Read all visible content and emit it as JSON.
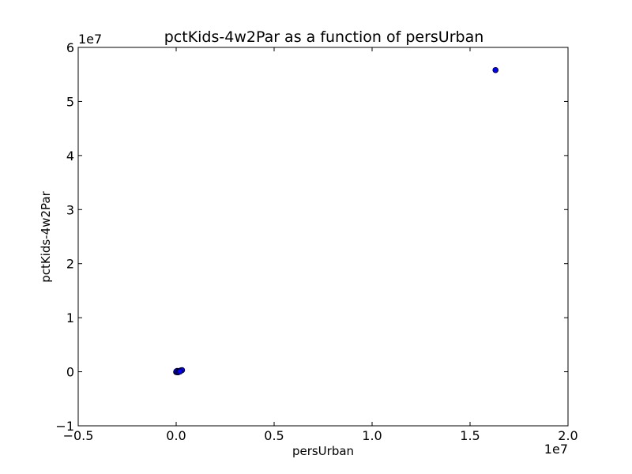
{
  "chart_data": {
    "type": "scatter",
    "title": "pctKids-4w2Par as a function of persUrban",
    "xlabel": "persUrban",
    "ylabel": "pctKids-4w2Par",
    "xlim": [
      -5000000,
      20000000
    ],
    "ylim": [
      -10000000,
      60000000
    ],
    "x_ticks": [
      -5000000,
      0,
      5000000,
      10000000,
      15000000,
      20000000
    ],
    "x_tick_labels": [
      "−0.5",
      "0.0",
      "0.5",
      "1.0",
      "1.5",
      "2.0"
    ],
    "x_offset_label": "1e7",
    "y_ticks": [
      -10000000,
      0,
      10000000,
      20000000,
      30000000,
      40000000,
      50000000,
      60000000
    ],
    "y_tick_labels": [
      "−1",
      "0",
      "1",
      "2",
      "3",
      "4",
      "5",
      "6"
    ],
    "y_offset_label": "1e7",
    "grid": false,
    "marker_color": "#0000ff",
    "marker_edge_color": "#000000",
    "points": [
      {
        "x": 16300000,
        "y": 55800000
      },
      {
        "x": 0,
        "y": -50000
      },
      {
        "x": 20000,
        "y": 0
      },
      {
        "x": 40000,
        "y": -80000
      },
      {
        "x": 60000,
        "y": 50000
      },
      {
        "x": 80000,
        "y": 20000
      },
      {
        "x": 100000,
        "y": -30000
      },
      {
        "x": 120000,
        "y": 80000
      },
      {
        "x": 150000,
        "y": 100000
      },
      {
        "x": 180000,
        "y": 150000
      },
      {
        "x": 220000,
        "y": 200000
      },
      {
        "x": 260000,
        "y": 250000
      },
      {
        "x": 300000,
        "y": 300000
      },
      {
        "x": 50000,
        "y": 150000
      },
      {
        "x": 10000,
        "y": 60000
      },
      {
        "x": 90000,
        "y": -100000
      },
      {
        "x": 140000,
        "y": -20000
      },
      {
        "x": 200000,
        "y": 50000
      }
    ]
  }
}
